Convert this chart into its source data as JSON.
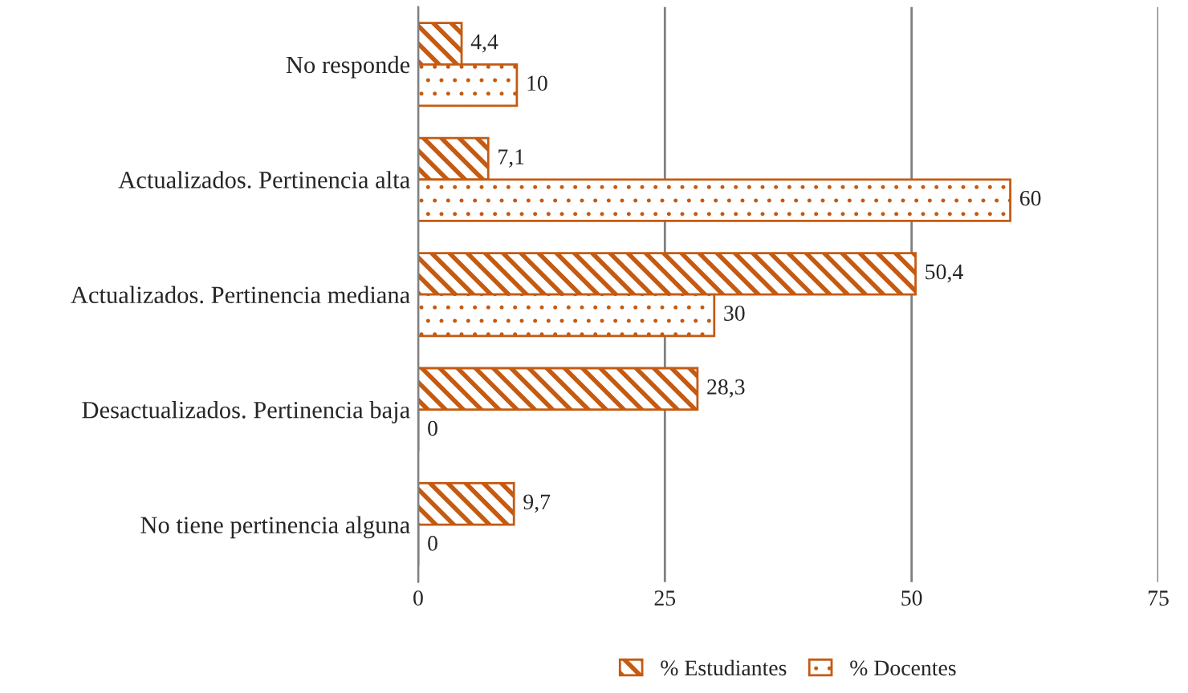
{
  "chart_data": {
    "type": "bar",
    "orientation": "horizontal",
    "categories": [
      "No responde",
      "Actualizados. Pertinencia alta",
      "Actualizados. Pertinencia mediana",
      "Desactualizados. Pertinencia baja",
      "No tiene pertinencia alguna"
    ],
    "series": [
      {
        "name": "% Estudiantes",
        "color": "#c55a11",
        "values": [
          4.4,
          7.1,
          50.4,
          28.3,
          9.7
        ],
        "value_labels": [
          "4,4",
          "7,1",
          "50,4",
          "28,3",
          "9,7"
        ]
      },
      {
        "name": "% Docentes",
        "color": "#c55a11",
        "values": [
          10,
          60,
          30,
          0,
          0
        ],
        "value_labels": [
          "10",
          "60",
          "30",
          "0",
          "0"
        ]
      }
    ],
    "xlim": [
      0,
      75
    ],
    "xticks": [
      0,
      25,
      50,
      75
    ],
    "grid": "x",
    "legend": "bottom"
  }
}
